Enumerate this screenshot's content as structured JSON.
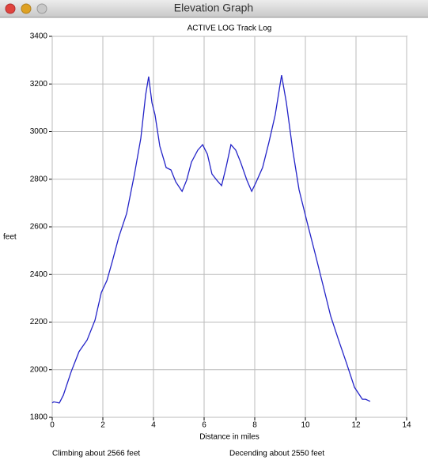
{
  "window_title": "Elevation Graph",
  "chart_data": {
    "type": "line",
    "title": "ACTIVE LOG Track Log",
    "x_label": "Distance in miles",
    "y_label": "feet",
    "annotations": [
      "Climbing about 2566 feet",
      "Decending about 2550 feet"
    ],
    "x": [
      0,
      0.06,
      0.28,
      0.44,
      0.75,
      1.06,
      1.38,
      1.69,
      1.94,
      2.16,
      2.38,
      2.63,
      2.94,
      3.25,
      3.5,
      3.69,
      3.81,
      3.94,
      4.06,
      4.25,
      4.5,
      4.69,
      4.88,
      5.13,
      5.31,
      5.5,
      5.75,
      5.94,
      6.13,
      6.31,
      6.5,
      6.69,
      6.88,
      7.06,
      7.25,
      7.44,
      7.69,
      7.88,
      8.06,
      8.31,
      8.56,
      8.81,
      9.06,
      9.25,
      9.5,
      9.75,
      10.06,
      10.38,
      10.69,
      11,
      11.31,
      11.63,
      11.94,
      12.25,
      12.38,
      12.56
    ],
    "series": [
      {
        "color": "#2424c8",
        "values": [
          1860,
          1865,
          1860,
          1893,
          1992,
          2076,
          2125,
          2208,
          2324,
          2374,
          2457,
          2557,
          2656,
          2822,
          2972,
          3154,
          3231,
          3121,
          3071,
          2939,
          2849,
          2839,
          2789,
          2749,
          2796,
          2872,
          2922,
          2945,
          2905,
          2822,
          2796,
          2773,
          2856,
          2945,
          2922,
          2872,
          2796,
          2749,
          2789,
          2849,
          2955,
          3071,
          3237,
          3121,
          2922,
          2756,
          2623,
          2490,
          2358,
          2225,
          2125,
          2026,
          1926,
          1876,
          1876,
          1867
        ]
      }
    ],
    "xlim": [
      0,
      14
    ],
    "xticks": [
      0,
      2,
      4,
      6,
      8,
      10,
      12,
      14
    ],
    "ylim": [
      1800,
      3400
    ],
    "yticks": [
      1800,
      2000,
      2200,
      2400,
      2600,
      2800,
      3000,
      3200,
      3400
    ],
    "grid": true
  }
}
